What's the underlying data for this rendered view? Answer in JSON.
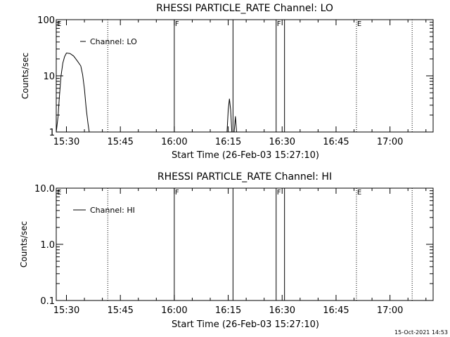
{
  "footer_timestamp": "15-Oct-2021 14:53",
  "chart_data": [
    {
      "type": "line",
      "title": "RHESSI PARTICLE_RATE Channel: LO",
      "xlabel": "Start Time (26-Feb-03 15:27:10)",
      "ylabel": "Counts/sec",
      "yscale": "log",
      "ylim": [
        1,
        100
      ],
      "xlim": [
        "15:27:10",
        "17:12:00"
      ],
      "x_tick_labels": [
        "15:30",
        "15:45",
        "16:00",
        "16:15",
        "16:30",
        "16:45",
        "17:00"
      ],
      "y_tick_labels": [
        "1",
        "10",
        "100"
      ],
      "legend": {
        "label": "Channel: LO",
        "placement": "top-left"
      },
      "markers": [
        {
          "time": "15:27:10",
          "label": "E",
          "style": "none"
        },
        {
          "time": "15:41:30",
          "label": "",
          "style": "dotted"
        },
        {
          "time": "16:00:00",
          "label": "F",
          "style": "solid"
        },
        {
          "time": "16:16:20",
          "label": "",
          "style": "solid"
        },
        {
          "time": "16:28:20",
          "label": "F",
          "style": "solid"
        },
        {
          "time": "16:30:40",
          "label": "",
          "style": "solid"
        },
        {
          "time": "16:50:40",
          "label": "E",
          "style": "dotted"
        },
        {
          "time": "17:06:10",
          "label": "",
          "style": "dotted"
        }
      ],
      "series": [
        {
          "name": "Channel: LO",
          "segments": [
            [
              [
                "15:27:10",
                1.0
              ],
              [
                "15:27:40",
                1.9
              ],
              [
                "15:28:00",
                4.0
              ],
              [
                "15:28:30",
                10.0
              ],
              [
                "15:29:00",
                17.0
              ],
              [
                "15:29:30",
                22.0
              ],
              [
                "15:30:00",
                25.5
              ],
              [
                "15:31:00",
                25.0
              ],
              [
                "15:32:00",
                22.5
              ],
              [
                "15:33:00",
                18.5
              ],
              [
                "15:34:00",
                15.0
              ],
              [
                "15:34:30",
                10.5
              ],
              [
                "15:35:00",
                5.8
              ],
              [
                "15:35:30",
                2.6
              ],
              [
                "15:36:00",
                1.4
              ],
              [
                "15:36:20",
                1.0
              ]
            ],
            [
              [
                "16:14:40",
                1.0
              ],
              [
                "16:15:00",
                2.5
              ],
              [
                "16:15:20",
                3.9
              ],
              [
                "16:15:40",
                2.5
              ],
              [
                "16:16:00",
                1.0
              ]
            ],
            [
              [
                "16:16:40",
                1.0
              ],
              [
                "16:17:00",
                1.9
              ],
              [
                "16:17:20",
                1.0
              ]
            ]
          ]
        }
      ]
    },
    {
      "type": "line",
      "title": "RHESSI PARTICLE_RATE Channel: HI",
      "xlabel": "Start Time (26-Feb-03 15:27:10)",
      "ylabel": "Counts/sec",
      "yscale": "log",
      "ylim": [
        0.1,
        10.0
      ],
      "xlim": [
        "15:27:10",
        "17:12:00"
      ],
      "x_tick_labels": [
        "15:30",
        "15:45",
        "16:00",
        "16:15",
        "16:30",
        "16:45",
        "17:00"
      ],
      "y_tick_labels": [
        "0.1",
        "1.0",
        "10.0"
      ],
      "legend": {
        "label": "Channel: HI",
        "placement": "top-left"
      },
      "markers": [
        {
          "time": "15:27:10",
          "label": "E",
          "style": "none"
        },
        {
          "time": "15:41:30",
          "label": "",
          "style": "dotted"
        },
        {
          "time": "16:00:00",
          "label": "F",
          "style": "solid"
        },
        {
          "time": "16:16:20",
          "label": "",
          "style": "solid"
        },
        {
          "time": "16:28:20",
          "label": "F",
          "style": "solid"
        },
        {
          "time": "16:30:40",
          "label": "",
          "style": "solid"
        },
        {
          "time": "16:50:40",
          "label": "E",
          "style": "dotted"
        },
        {
          "time": "17:06:10",
          "label": "",
          "style": "dotted"
        }
      ],
      "series": [
        {
          "name": "Channel: HI",
          "segments": []
        }
      ]
    }
  ]
}
